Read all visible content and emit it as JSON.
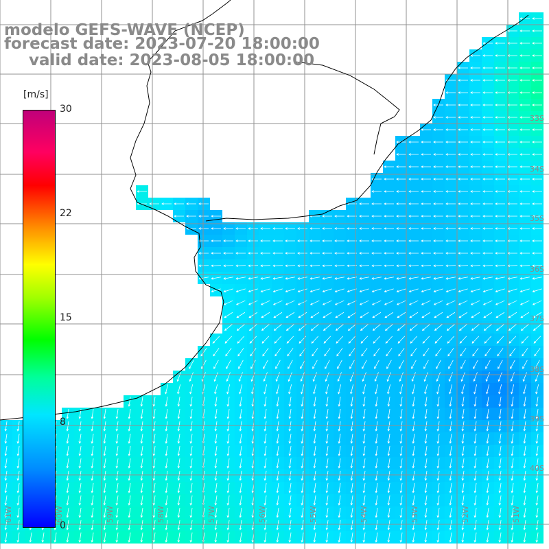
{
  "title": {
    "model": "modelo GEFS-WAVE (NCEP)",
    "forecast": "forecast date: 2023-07-20 18:00:00",
    "valid": "valid date: 2023-08-05 18:00:00"
  },
  "colorbar": {
    "unit": "[m/s]",
    "ticks": [
      "30",
      "22",
      "15",
      "8",
      "0"
    ],
    "tick_values": [
      30,
      22,
      15,
      8,
      0
    ],
    "range": [
      0,
      30
    ]
  },
  "map": {
    "lat_labels": [
      "33S",
      "34S",
      "35S",
      "36S",
      "37S",
      "38S",
      "39S",
      "40S"
    ],
    "lon_labels": [
      "61W",
      "60W",
      "59W",
      "58W",
      "57W",
      "56W",
      "55W",
      "54W",
      "53W",
      "52W",
      "51W"
    ],
    "variable": "wind speed with direction arrows",
    "colors": {
      "land": "#ffffff",
      "grid": "#909090",
      "coastline": "#000000",
      "arrows": "#ffffff",
      "label": "#8a8a8a"
    }
  }
}
